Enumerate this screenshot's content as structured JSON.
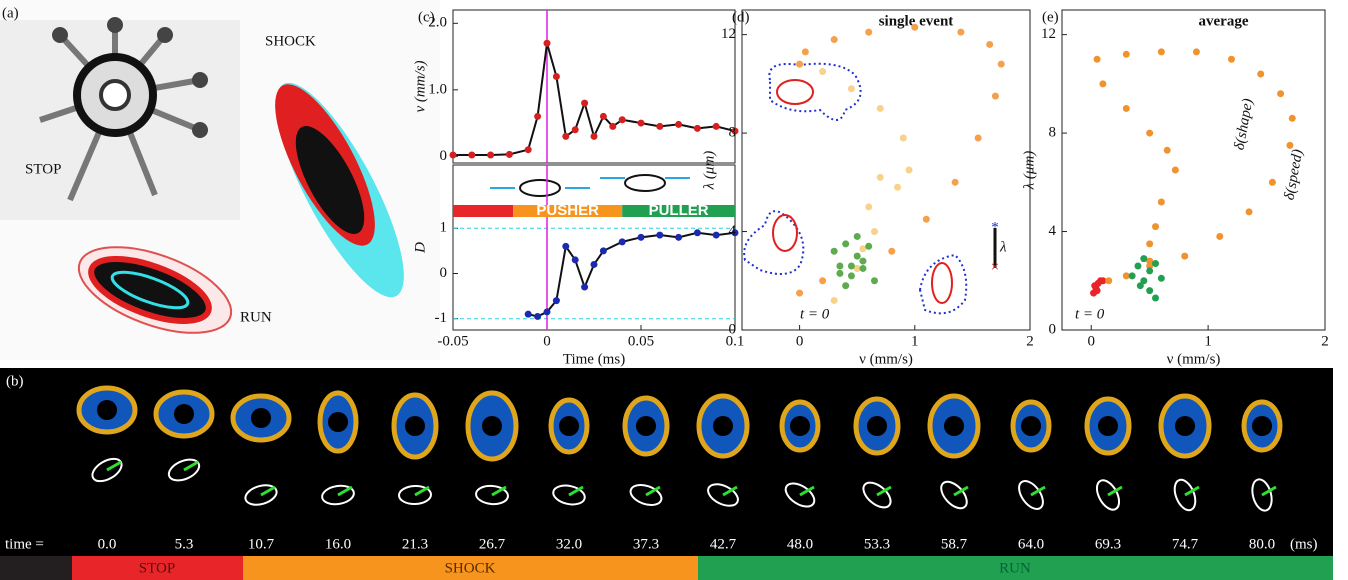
{
  "panel_labels": [
    "(a)",
    "(b)",
    "(c)",
    "(d)",
    "(e)"
  ],
  "panel_a": {
    "labels": [
      "STOP",
      "SHOCK",
      "RUN"
    ]
  },
  "panel_b": {
    "time_label": "time =",
    "times": [
      "0.0",
      "5.3",
      "10.7",
      "16.0",
      "21.3",
      "26.7",
      "32.0",
      "37.3",
      "42.7",
      "48.0",
      "53.3",
      "58.7",
      "64.0",
      "69.3",
      "74.7",
      "80.0"
    ],
    "unit": "(ms)",
    "phases": [
      "STOP",
      "SHOCK",
      "RUN"
    ]
  },
  "chart_data": [
    {
      "type": "line",
      "ylabel": "ν (mm/s)",
      "xlim": [
        -0.05,
        0.1
      ],
      "ylim": [
        -0.1,
        2.2
      ],
      "yticks": [
        0,
        {
          "value": 1,
          "label": "1.0"
        },
        {
          "value": 2,
          "label": "2.0"
        }
      ],
      "vline": 0,
      "x": [
        -0.05,
        -0.04,
        -0.03,
        -0.02,
        -0.01,
        -0.005,
        0,
        0.005,
        0.01,
        0.015,
        0.02,
        0.025,
        0.03,
        0.035,
        0.04,
        0.05,
        0.06,
        0.07,
        0.08,
        0.09,
        0.1
      ],
      "series": [
        {
          "color": "#d62020",
          "values": [
            0.02,
            0.02,
            0.02,
            0.03,
            0.1,
            0.6,
            1.7,
            1.2,
            0.3,
            0.4,
            0.8,
            0.3,
            0.6,
            0.45,
            0.55,
            0.5,
            0.45,
            0.48,
            0.42,
            0.45,
            0.38
          ]
        }
      ]
    },
    {
      "type": "line",
      "ylabel": "D",
      "xlabel": "Time (ms)",
      "xlim": [
        -0.05,
        0.1
      ],
      "ylim": [
        -1.25,
        2.4
      ],
      "xticks": [
        -0.05,
        0,
        0.05,
        0.1
      ],
      "yticks": [
        -1,
        0,
        1
      ],
      "vline": 0,
      "hlines": [
        -1,
        1
      ],
      "phases": [
        {
          "start": -0.05,
          "end": -0.018,
          "color": "#e8262a"
        },
        {
          "name": "PUSHER",
          "start": -0.018,
          "end": 0.04,
          "color": "#f7941d"
        },
        {
          "name": "PULLER",
          "start": 0.04,
          "end": 0.1,
          "color": "#21a052"
        }
      ],
      "x": [
        -0.01,
        -0.005,
        0,
        0.005,
        0.01,
        0.015,
        0.02,
        0.025,
        0.03,
        0.04,
        0.05,
        0.06,
        0.07,
        0.08,
        0.09,
        0.1
      ],
      "series": [
        {
          "color": "#1a2bb0",
          "values": [
            -0.9,
            -0.95,
            -0.85,
            -0.6,
            0.6,
            0.3,
            -0.3,
            0.2,
            0.5,
            0.7,
            0.8,
            0.85,
            0.8,
            0.9,
            0.85,
            0.9
          ]
        }
      ]
    },
    {
      "type": "scatter",
      "title": "single event",
      "xlabel": "ν (mm/s)",
      "ylabel": "λ (μm)",
      "annotations": [
        "t = 0",
        "λ"
      ],
      "xlim": [
        -0.5,
        2
      ],
      "ylim": [
        0,
        13
      ],
      "xticks": [
        0,
        1,
        2
      ],
      "yticks": [
        0,
        4,
        8,
        12
      ],
      "series": [
        {
          "color": "#f5a04a",
          "x": [
            0,
            0.2,
            0.5,
            0.8,
            1.1,
            1.35,
            1.55,
            1.7,
            1.75,
            1.65,
            1.4,
            1.0,
            0.6,
            0.3,
            0.05,
            0
          ],
          "values": [
            1.5,
            2.0,
            2.5,
            3.2,
            4.5,
            6.0,
            7.8,
            9.5,
            10.8,
            11.6,
            12.1,
            12.3,
            12.1,
            11.8,
            11.3,
            10.8
          ]
        },
        {
          "color": "#f8d28a",
          "x": [
            0.2,
            0.45,
            0.7,
            0.9,
            0.95,
            0.85,
            0.7,
            0.6,
            0.65,
            0.55,
            0.5,
            0.4,
            0.3
          ],
          "values": [
            10.5,
            9.8,
            9.0,
            7.8,
            6.5,
            5.8,
            6.2,
            5.0,
            4.0,
            3.3,
            2.5,
            1.8,
            1.2
          ]
        },
        {
          "color": "#5daa4f",
          "x": [
            0.3,
            0.35,
            0.4,
            0.45,
            0.5,
            0.55,
            0.6,
            0.65,
            0.4,
            0.5,
            0.35,
            0.55,
            0.45
          ],
          "values": [
            3.2,
            2.6,
            3.5,
            2.2,
            3.0,
            2.5,
            3.4,
            2.0,
            1.8,
            3.8,
            2.3,
            2.8,
            2.6
          ]
        }
      ]
    },
    {
      "type": "scatter",
      "title": "average",
      "xlabel": "ν (mm/s)",
      "ylabel": "λ (μm)",
      "annotations": [
        "t = 0",
        "δ(shape)",
        "δ(speed)"
      ],
      "xlim": [
        -0.25,
        2
      ],
      "ylim": [
        0,
        13
      ],
      "xticks": [
        0,
        1,
        2
      ],
      "yticks": [
        0,
        4,
        8,
        12
      ],
      "series": [
        {
          "color": "#e8262a",
          "x": [
            0.02,
            0.04,
            0.06,
            0.08,
            0.1,
            0.05,
            0.03
          ],
          "values": [
            1.5,
            1.7,
            1.9,
            2.0,
            2.0,
            1.6,
            1.8
          ]
        },
        {
          "color": "#f0922e",
          "x": [
            0.15,
            0.3,
            0.5,
            0.8,
            1.1,
            1.35,
            1.55,
            1.7,
            1.72,
            1.62,
            1.45,
            1.2,
            0.9,
            0.6,
            0.3,
            0.05,
            0.1,
            0.3,
            0.5,
            0.65,
            0.72,
            0.6,
            0.55,
            0.5,
            0.5
          ],
          "values": [
            2.0,
            2.2,
            2.6,
            3.0,
            3.8,
            4.8,
            6.0,
            7.5,
            8.6,
            9.6,
            10.4,
            11.0,
            11.3,
            11.3,
            11.2,
            11.0,
            10.0,
            9.0,
            8.0,
            7.3,
            6.5,
            5.2,
            4.2,
            3.5,
            2.8
          ]
        },
        {
          "color": "#21a052",
          "x": [
            0.35,
            0.4,
            0.45,
            0.5,
            0.55,
            0.6,
            0.5,
            0.45,
            0.55,
            0.42
          ],
          "values": [
            2.2,
            2.6,
            2.0,
            2.4,
            2.7,
            2.1,
            1.6,
            2.9,
            1.3,
            1.8
          ]
        }
      ]
    }
  ]
}
